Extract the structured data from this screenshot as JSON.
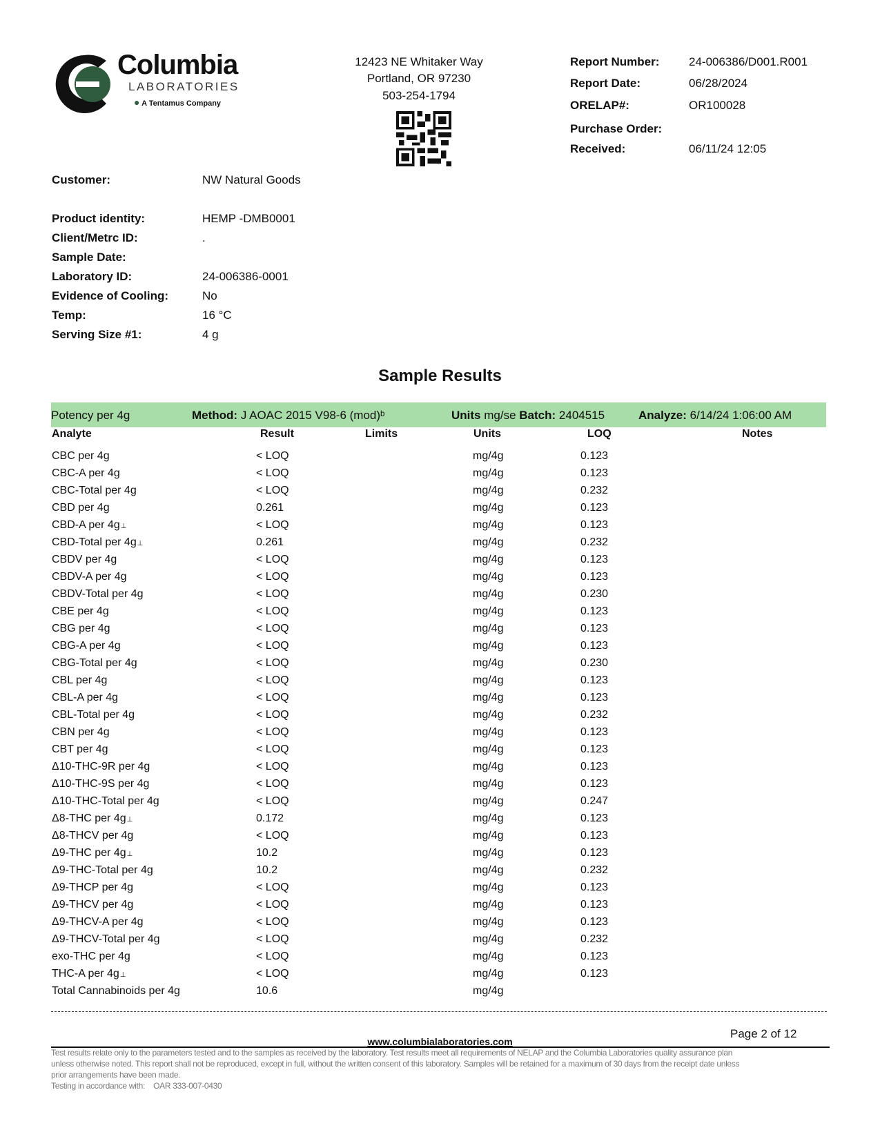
{
  "brand": {
    "name": "Columbia",
    "sub": "LABORATORIES",
    "tag": "A Tentamus Company",
    "green": "#2f5b3f"
  },
  "address": [
    "12423 NE Whitaker Way",
    "Portland, OR 97230",
    "503-254-1794"
  ],
  "report": [
    {
      "label": "Report Number:",
      "value": "24-006386/D001.R001"
    },
    {
      "label": "Report Date:",
      "value": "06/28/2024"
    },
    {
      "label": "ORELAP#:",
      "value": "OR100028"
    },
    {
      "label": "Purchase Order:",
      "value": ""
    },
    {
      "label": "Received:",
      "value": "06/11/24  12:05"
    }
  ],
  "customer": {
    "label": "Customer:",
    "value": "NW Natural Goods"
  },
  "info": [
    {
      "label": "Product identity:",
      "value": "HEMP -DMB0001"
    },
    {
      "label": "Client/Metrc ID:",
      "value": "."
    },
    {
      "label": "Sample Date:",
      "value": ""
    },
    {
      "label": "Laboratory ID:",
      "value": "24-006386-0001"
    },
    {
      "label": "Evidence of Cooling:",
      "value": "No"
    },
    {
      "label": "Temp:",
      "value": "16 °C"
    },
    {
      "label": "Serving Size #1:",
      "value": "4 g"
    }
  ],
  "section_title": "Sample Results",
  "bar": {
    "name": "Potency per 4g",
    "method_label": "Method:",
    "method": "J AOAC 2015 V98-6 (mod)ᵇ",
    "units_label": "Units",
    "units": "mg/se",
    "batch_label": "Batch:",
    "batch": "2404515",
    "analyze_label": "Analyze:",
    "analyze": "6/14/24  1:06:00 AM",
    "color": "#a8dca8"
  },
  "columns": [
    "Analyte",
    "Result",
    "Limits",
    "Units",
    "LOQ",
    "Notes"
  ],
  "rows": [
    {
      "a": "CBC per 4g",
      "m": "",
      "r": "< LOQ",
      "u": "mg/4g",
      "l": "0.123"
    },
    {
      "a": "CBC-A per 4g",
      "m": "",
      "r": "< LOQ",
      "u": "mg/4g",
      "l": "0.123"
    },
    {
      "a": "CBC-Total per 4g",
      "m": "",
      "r": "< LOQ",
      "u": "mg/4g",
      "l": "0.232"
    },
    {
      "a": "CBD per 4g",
      "m": "",
      "r": "0.261",
      "u": "mg/4g",
      "l": "0.123"
    },
    {
      "a": "CBD-A per 4g",
      "m": "⊥",
      "r": "< LOQ",
      "u": "mg/4g",
      "l": "0.123"
    },
    {
      "a": "CBD-Total per 4g",
      "m": "⊥",
      "r": "0.261",
      "u": "mg/4g",
      "l": "0.232"
    },
    {
      "a": "CBDV per 4g",
      "m": "",
      "r": "< LOQ",
      "u": "mg/4g",
      "l": "0.123"
    },
    {
      "a": "CBDV-A per 4g",
      "m": "",
      "r": "< LOQ",
      "u": "mg/4g",
      "l": "0.123"
    },
    {
      "a": "CBDV-Total per 4g",
      "m": "",
      "r": "< LOQ",
      "u": "mg/4g",
      "l": "0.230"
    },
    {
      "a": "CBE per 4g",
      "m": "",
      "r": "< LOQ",
      "u": "mg/4g",
      "l": "0.123"
    },
    {
      "a": "CBG per 4g",
      "m": "",
      "r": "< LOQ",
      "u": "mg/4g",
      "l": "0.123"
    },
    {
      "a": "CBG-A per 4g",
      "m": "",
      "r": "< LOQ",
      "u": "mg/4g",
      "l": "0.123"
    },
    {
      "a": "CBG-Total per 4g",
      "m": "",
      "r": "< LOQ",
      "u": "mg/4g",
      "l": "0.230"
    },
    {
      "a": "CBL per 4g",
      "m": "",
      "r": "< LOQ",
      "u": "mg/4g",
      "l": "0.123"
    },
    {
      "a": "CBL-A per 4g",
      "m": "",
      "r": "< LOQ",
      "u": "mg/4g",
      "l": "0.123"
    },
    {
      "a": "CBL-Total per 4g",
      "m": "",
      "r": "< LOQ",
      "u": "mg/4g",
      "l": "0.232"
    },
    {
      "a": "CBN per 4g",
      "m": "",
      "r": "< LOQ",
      "u": "mg/4g",
      "l": "0.123"
    },
    {
      "a": "CBT per 4g",
      "m": "",
      "r": "< LOQ",
      "u": "mg/4g",
      "l": "0.123"
    },
    {
      "a": "Δ10-THC-9R per 4g",
      "m": "",
      "r": "< LOQ",
      "u": "mg/4g",
      "l": "0.123"
    },
    {
      "a": "Δ10-THC-9S per 4g",
      "m": "",
      "r": "< LOQ",
      "u": "mg/4g",
      "l": "0.123"
    },
    {
      "a": "Δ10-THC-Total per 4g",
      "m": "",
      "r": "< LOQ",
      "u": "mg/4g",
      "l": "0.247"
    },
    {
      "a": "Δ8-THC per 4g",
      "m": "⊥",
      "r": "0.172",
      "u": "mg/4g",
      "l": "0.123"
    },
    {
      "a": "Δ8-THCV per 4g",
      "m": "",
      "r": "< LOQ",
      "u": "mg/4g",
      "l": "0.123"
    },
    {
      "a": "Δ9-THC per 4g",
      "m": "⊥",
      "r": "10.2",
      "u": "mg/4g",
      "l": "0.123"
    },
    {
      "a": "Δ9-THC-Total per 4g",
      "m": "",
      "r": "10.2",
      "u": "mg/4g",
      "l": "0.232"
    },
    {
      "a": "Δ9-THCP per 4g",
      "m": "",
      "r": "< LOQ",
      "u": "mg/4g",
      "l": "0.123"
    },
    {
      "a": "Δ9-THCV per 4g",
      "m": "",
      "r": "< LOQ",
      "u": "mg/4g",
      "l": "0.123"
    },
    {
      "a": "Δ9-THCV-A per 4g",
      "m": "",
      "r": "< LOQ",
      "u": "mg/4g",
      "l": "0.123"
    },
    {
      "a": "Δ9-THCV-Total per 4g",
      "m": "",
      "r": "< LOQ",
      "u": "mg/4g",
      "l": "0.232"
    },
    {
      "a": "exo-THC per 4g",
      "m": "",
      "r": "< LOQ",
      "u": "mg/4g",
      "l": "0.123"
    },
    {
      "a": "THC-A per 4g",
      "m": "⊥",
      "r": "< LOQ",
      "u": "mg/4g",
      "l": "0.123"
    },
    {
      "a": "Total Cannabinoids per 4g",
      "m": "",
      "r": "10.6",
      "u": "mg/4g",
      "l": ""
    }
  ],
  "footer": {
    "page": "Page 2 of 12",
    "url": "www.columbialaboratories.com",
    "disclaimer": [
      "Test results relate only to the parameters tested and to the samples as received by the laboratory. Test results meet all requirements of NELAP and the Columbia Laboratories quality assurance plan",
      "unless otherwise noted. This report shall not be reproduced, except in full, without the written consent of this laboratory. Samples will be retained for a maximum of 30 days from the receipt date unless",
      "prior arrangements have been made."
    ],
    "testing_label": "Testing in accordance with:",
    "testing_value": "OAR 333-007-0430"
  }
}
